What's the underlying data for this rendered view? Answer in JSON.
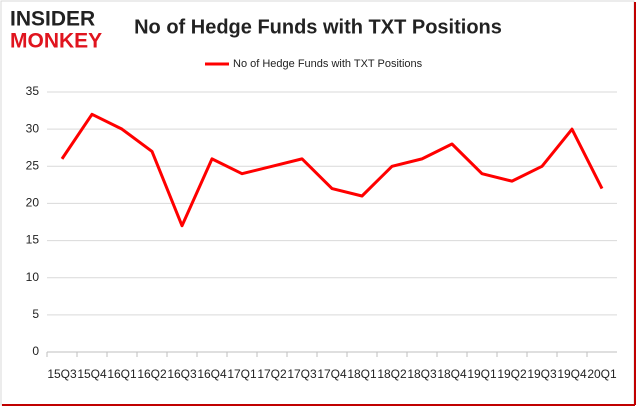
{
  "logo": {
    "line1": "INSIDER",
    "line2": "MONKEY"
  },
  "chart_data": {
    "type": "line",
    "title": "No of Hedge Funds with TXT Positions",
    "categories": [
      "15Q3",
      "15Q4",
      "16Q1",
      "16Q2",
      "16Q3",
      "16Q4",
      "17Q1",
      "17Q2",
      "17Q3",
      "17Q4",
      "18Q1",
      "18Q2",
      "18Q3",
      "18Q4",
      "19Q1",
      "19Q2",
      "19Q3",
      "19Q4",
      "20Q1"
    ],
    "series": [
      {
        "name": "No of Hedge Funds with TXT Positions",
        "color": "#ff0000",
        "values": [
          26,
          32,
          30,
          27,
          17,
          26,
          24,
          25,
          26,
          22,
          21,
          25,
          26,
          28,
          24,
          23,
          25,
          30,
          22
        ]
      }
    ],
    "ylim": [
      0,
      35
    ],
    "yticks": [
      0,
      5,
      10,
      15,
      20,
      25,
      30,
      35
    ],
    "grid": true,
    "legend": "top"
  }
}
